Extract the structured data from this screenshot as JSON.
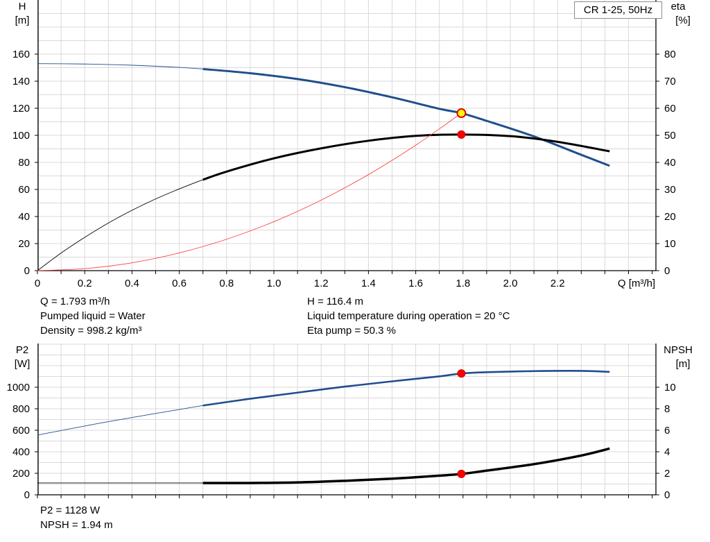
{
  "chart_data": [
    {
      "type": "line",
      "legend": "CR 1-25, 50Hz",
      "x_label": "Q [m³/h]",
      "xlim": [
        0,
        2.5
      ],
      "x_ticks": [
        "0",
        "0.2",
        "0.4",
        "0.6",
        "0.8",
        "1.0",
        "1.2",
        "1.4",
        "1.6",
        "1.8",
        "2.0",
        "2.2"
      ],
      "y_left": {
        "name": "H",
        "unit": "[m]",
        "ylim": [
          0,
          180
        ],
        "ticks": [
          "0",
          "20",
          "40",
          "60",
          "80",
          "100",
          "120",
          "140",
          "160"
        ]
      },
      "y_right": {
        "name": "eta",
        "unit": "[%]",
        "ylim": [
          0,
          90
        ],
        "ticks": [
          "0",
          "10",
          "20",
          "30",
          "40",
          "50",
          "60",
          "70",
          "80"
        ]
      },
      "grid": true,
      "series": [
        {
          "axis": "left",
          "color": "#1f4e8c",
          "x": [
            0,
            0.2,
            0.4,
            0.6,
            0.7,
            0.9,
            1.1,
            1.3,
            1.5,
            1.7,
            1.793,
            1.9,
            2.1,
            2.3,
            2.42
          ],
          "y": [
            153,
            152.7,
            151.8,
            150.2,
            149,
            145.9,
            141.6,
            135.6,
            128.1,
            119.6,
            116.4,
            110.7,
            99.2,
            85.6,
            77.5
          ],
          "operating_range_start": 0.7
        },
        {
          "axis": "right",
          "color": "#000000",
          "x": [
            0,
            0.1,
            0.2,
            0.3,
            0.4,
            0.5,
            0.6,
            0.7,
            0.8,
            1.0,
            1.2,
            1.4,
            1.6,
            1.793,
            2.0,
            2.2,
            2.42
          ],
          "y": [
            0,
            6.5,
            12.3,
            17.6,
            22.3,
            26.5,
            30.2,
            33.6,
            36.6,
            41.5,
            45.2,
            48.0,
            49.8,
            50.3,
            49.7,
            47.6,
            44.1
          ],
          "operating_range_start": 0.7
        },
        {
          "axis": "left",
          "color": "#ff4040",
          "thin": true,
          "x": [
            0,
            0.2,
            0.4,
            0.6,
            0.8,
            1.0,
            1.2,
            1.4,
            1.6,
            1.793
          ],
          "y": [
            0,
            1.5,
            5.8,
            13.1,
            23.2,
            36.2,
            52.1,
            71,
            92.7,
            116.4
          ]
        }
      ],
      "operating_point": {
        "x": 1.793,
        "H": 116.4,
        "eta": 50.3
      }
    },
    {
      "type": "line",
      "xlim": [
        0,
        2.5
      ],
      "y_left": {
        "name": "P2",
        "unit": "[W]",
        "ylim": [
          0,
          1200
        ],
        "ticks": [
          "0",
          "200",
          "400",
          "600",
          "800",
          "1000"
        ]
      },
      "y_right": {
        "name": "NPSH",
        "unit": "[m]",
        "ylim": [
          0,
          12
        ],
        "ticks": [
          "0",
          "2",
          "4",
          "6",
          "8",
          "10"
        ]
      },
      "grid": true,
      "series": [
        {
          "axis": "left",
          "color": "#1f4e8c",
          "x": [
            0,
            0.3,
            0.7,
            0.9,
            1.1,
            1.3,
            1.5,
            1.7,
            1.793,
            1.9,
            2.1,
            2.3,
            2.42
          ],
          "y": [
            555,
            680,
            830,
            893,
            950,
            1006,
            1055,
            1101,
            1128,
            1140,
            1150,
            1152,
            1143
          ],
          "operating_range_start": 0.7
        },
        {
          "axis": "right",
          "color": "#000000",
          "x": [
            0,
            0.3,
            0.7,
            0.9,
            1.1,
            1.3,
            1.5,
            1.7,
            1.793,
            1.9,
            2.1,
            2.3,
            2.42
          ],
          "y": [
            1.1,
            1.1,
            1.1,
            1.1,
            1.15,
            1.3,
            1.5,
            1.78,
            1.94,
            2.25,
            2.85,
            3.65,
            4.3
          ],
          "operating_range_start": 0.7
        }
      ],
      "operating_point": {
        "x": 1.793,
        "P2": 1128,
        "NPSH": 1.94
      }
    }
  ],
  "info_top": {
    "q": "Q = 1.793 m³/h",
    "liquid": "Pumped liquid = Water",
    "density": "Density = 998.2 kg/m³",
    "h": "H = 116.4 m",
    "temperature": "Liquid temperature during operation = 20 °C",
    "eta": "Eta pump = 50.3 %"
  },
  "info_bottom": {
    "p2": "P2 = 1128 W",
    "npsh": "NPSH = 1.94 m"
  }
}
